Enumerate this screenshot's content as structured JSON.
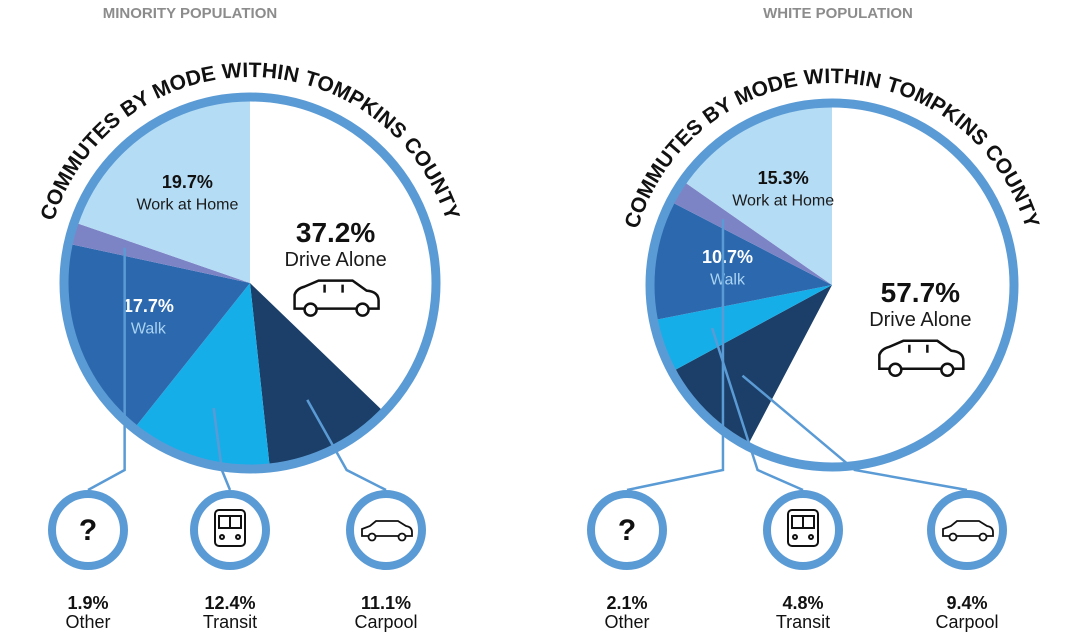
{
  "chart_data": [
    {
      "type": "pie",
      "title": "MINORITY POPULATION",
      "subtitle": "COMMUTES BY MODE WITHIN TOMPKINS COUNTY",
      "categories": [
        "Drive Alone",
        "Carpool",
        "Transit",
        "Walk",
        "Other",
        "Work at Home"
      ],
      "values": [
        37.2,
        11.1,
        12.4,
        17.7,
        1.9,
        19.7
      ],
      "value_labels": [
        "37.2%",
        "11.1%",
        "12.4%",
        "17.7%",
        "1.9%",
        "19.7%"
      ],
      "colors": [
        "#ffffff",
        "#1b3f68",
        "#16aee9",
        "#2c68ae",
        "#7c84c6",
        "#b4dcf5"
      ],
      "other_symbol": "?"
    },
    {
      "type": "pie",
      "title": "WHITE POPULATION",
      "subtitle": "COMMUTES BY MODE WITHIN TOMPKINS COUNTY",
      "categories": [
        "Drive Alone",
        "Carpool",
        "Transit",
        "Walk",
        "Other",
        "Work at Home"
      ],
      "values": [
        57.7,
        9.4,
        4.8,
        10.7,
        2.1,
        15.3
      ],
      "value_labels": [
        "57.7%",
        "9.4%",
        "4.8%",
        "10.7%",
        "2.1%",
        "15.3%"
      ],
      "colors": [
        "#ffffff",
        "#1b3f68",
        "#16aee9",
        "#2c68ae",
        "#7c84c6",
        "#b4dcf5"
      ],
      "other_symbol": "?"
    }
  ]
}
